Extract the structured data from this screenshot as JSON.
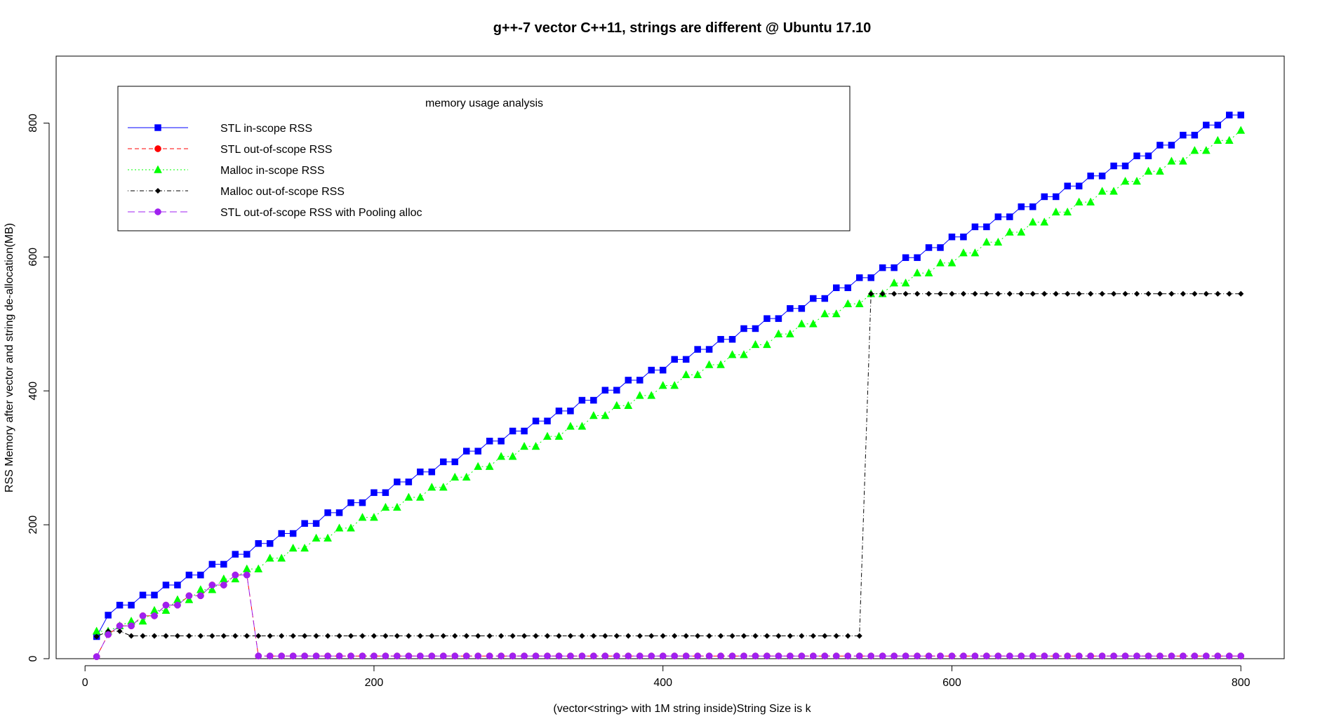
{
  "chart_data": {
    "type": "line",
    "title": "g++-7 vector C++11, strings are different @ Ubuntu 17.10",
    "xlabel": "(vector<string> with 1M string inside)String Size is k",
    "ylabel": "RSS Memory after vector and string de-allocation(MB)",
    "xlim": [
      -20,
      830
    ],
    "ylim": [
      0,
      900
    ],
    "xticks": [
      0,
      200,
      400,
      600,
      800
    ],
    "yticks": [
      0,
      200,
      400,
      600,
      800
    ],
    "grid": false,
    "legend": {
      "title": "memory usage analysis",
      "placement": "top-left",
      "entries": [
        {
          "label": "STL in-scope RSS",
          "color": "#0000ff",
          "marker": "square",
          "dash": "solid"
        },
        {
          "label": "STL out-of-scope RSS",
          "color": "#ff0000",
          "marker": "circle",
          "dash": "dashed"
        },
        {
          "label": "Malloc in-scope RSS",
          "color": "#00ff00",
          "marker": "triangle",
          "dash": "dotted"
        },
        {
          "label": "Malloc out-of-scope RSS",
          "color": "#000000",
          "marker": "diamond",
          "dash": "dotdash"
        },
        {
          "label": "STL out-of-scope RSS with Pooling alloc",
          "color": "#a020f0",
          "marker": "circle",
          "dash": "longdash"
        }
      ]
    },
    "series": [
      {
        "name": "STL in-scope RSS",
        "color": "#0000ff",
        "marker": "square",
        "dash": "",
        "x": [
          8,
          16,
          24,
          32,
          40,
          48,
          56,
          64,
          72,
          80,
          88,
          96,
          104,
          112,
          120,
          128,
          136,
          144,
          152,
          160,
          168,
          176,
          184,
          192,
          200,
          208,
          216,
          224,
          232,
          240,
          248,
          256,
          264,
          272,
          280,
          288,
          296,
          304,
          312,
          320,
          328,
          336,
          344,
          352,
          360,
          368,
          376,
          384,
          392,
          400,
          408,
          416,
          424,
          432,
          440,
          448,
          456,
          464,
          472,
          480,
          488,
          496,
          504,
          512,
          520,
          528,
          536,
          544,
          552,
          560,
          568,
          576,
          584,
          592,
          600,
          608,
          616,
          624,
          632,
          640,
          648,
          656,
          664,
          672,
          680,
          688,
          696,
          704,
          712,
          720,
          728,
          736,
          744,
          752,
          760,
          768,
          776,
          784,
          792,
          800
        ],
        "y": [
          33,
          65,
          80,
          80,
          95,
          95,
          110,
          110,
          125,
          125,
          141,
          141,
          156,
          156,
          172,
          172,
          187,
          187,
          202,
          202,
          218,
          218,
          233,
          233,
          248,
          248,
          264,
          264,
          279,
          279,
          294,
          294,
          310,
          310,
          325,
          325,
          340,
          340,
          355,
          355,
          370,
          370,
          386,
          386,
          401,
          401,
          416,
          416,
          431,
          431,
          447,
          447,
          462,
          462,
          477,
          477,
          493,
          493,
          508,
          508,
          523,
          523,
          538,
          538,
          554,
          554,
          569,
          569,
          584,
          584,
          599,
          599,
          614,
          614,
          630,
          630,
          645,
          645,
          660,
          660,
          675,
          675,
          690,
          690,
          706,
          706,
          721,
          721,
          736,
          736,
          751,
          751,
          767,
          767,
          782,
          782,
          797,
          797,
          812,
          812
        ]
      },
      {
        "name": "STL out-of-scope RSS",
        "color": "#ff0000",
        "marker": "circle",
        "dash": "6,4",
        "x": [
          8,
          16,
          24,
          32,
          40,
          48,
          56,
          64,
          72,
          80,
          88,
          96,
          104,
          112,
          120,
          128,
          136,
          144,
          152,
          160,
          168,
          176,
          184,
          192,
          200,
          208,
          216,
          224,
          232,
          240,
          248,
          256,
          264,
          272,
          280,
          288,
          296,
          304,
          312,
          320,
          328,
          336,
          344,
          352,
          360,
          368,
          376,
          384,
          392,
          400,
          408,
          416,
          424,
          432,
          440,
          448,
          456,
          464,
          472,
          480,
          488,
          496,
          504,
          512,
          520,
          528,
          536,
          544,
          552,
          560,
          568,
          576,
          584,
          592,
          600,
          608,
          616,
          624,
          632,
          640,
          648,
          656,
          664,
          672,
          680,
          688,
          696,
          704,
          712,
          720,
          728,
          736,
          744,
          752,
          760,
          768,
          776,
          784,
          792,
          800
        ],
        "y": [
          3,
          36,
          49,
          49,
          64,
          64,
          80,
          80,
          94,
          94,
          110,
          110,
          125,
          125,
          4,
          4,
          4,
          4,
          4,
          4,
          4,
          4,
          4,
          4,
          4,
          4,
          4,
          4,
          4,
          4,
          4,
          4,
          4,
          4,
          4,
          4,
          4,
          4,
          4,
          4,
          4,
          4,
          4,
          4,
          4,
          4,
          4,
          4,
          4,
          4,
          4,
          4,
          4,
          4,
          4,
          4,
          4,
          4,
          4,
          4,
          4,
          4,
          4,
          4,
          4,
          4,
          4,
          4,
          4,
          4,
          4,
          4,
          4,
          4,
          4,
          4,
          4,
          4,
          4,
          4,
          4,
          4,
          4,
          4,
          4,
          4,
          4,
          4,
          4,
          4,
          4,
          4,
          4,
          4,
          4,
          4,
          4,
          4,
          4,
          4
        ]
      },
      {
        "name": "Malloc in-scope RSS",
        "color": "#00ff00",
        "marker": "triangle",
        "dash": "2,4",
        "x": [
          8,
          16,
          24,
          32,
          40,
          48,
          56,
          64,
          72,
          80,
          88,
          96,
          104,
          112,
          120,
          128,
          136,
          144,
          152,
          160,
          168,
          176,
          184,
          192,
          200,
          208,
          216,
          224,
          232,
          240,
          248,
          256,
          264,
          272,
          280,
          288,
          296,
          304,
          312,
          320,
          328,
          336,
          344,
          352,
          360,
          368,
          376,
          384,
          392,
          400,
          408,
          416,
          424,
          432,
          440,
          448,
          456,
          464,
          472,
          480,
          488,
          496,
          504,
          512,
          520,
          528,
          536,
          544,
          552,
          560,
          568,
          576,
          584,
          592,
          600,
          608,
          616,
          624,
          632,
          640,
          648,
          656,
          664,
          672,
          680,
          688,
          696,
          704,
          712,
          720,
          728,
          736,
          744,
          752,
          760,
          768,
          776,
          784,
          792,
          800
        ],
        "y": [
          41,
          41,
          49,
          56,
          56,
          72,
          72,
          88,
          88,
          103,
          103,
          119,
          119,
          134,
          134,
          150,
          150,
          165,
          165,
          180,
          180,
          195,
          195,
          211,
          211,
          226,
          226,
          241,
          241,
          256,
          256,
          271,
          271,
          287,
          287,
          302,
          302,
          317,
          317,
          332,
          332,
          347,
          347,
          363,
          363,
          378,
          378,
          393,
          393,
          408,
          408,
          424,
          424,
          439,
          439,
          454,
          454,
          469,
          469,
          485,
          485,
          500,
          500,
          515,
          515,
          530,
          530,
          545,
          545,
          561,
          561,
          576,
          576,
          591,
          591,
          606,
          606,
          622,
          622,
          637,
          637,
          652,
          652,
          667,
          667,
          682,
          682,
          698,
          698,
          713,
          713,
          728,
          728,
          743,
          743,
          759,
          759,
          774,
          774,
          789
        ]
      },
      {
        "name": "Malloc out-of-scope RSS",
        "color": "#000000",
        "marker": "diamond",
        "dash": "1,3,6,3",
        "x": [
          8,
          16,
          24,
          32,
          40,
          48,
          56,
          64,
          72,
          80,
          88,
          96,
          104,
          112,
          120,
          128,
          136,
          144,
          152,
          160,
          168,
          176,
          184,
          192,
          200,
          208,
          216,
          224,
          232,
          240,
          248,
          256,
          264,
          272,
          280,
          288,
          296,
          304,
          312,
          320,
          328,
          336,
          344,
          352,
          360,
          368,
          376,
          384,
          392,
          400,
          408,
          416,
          424,
          432,
          440,
          448,
          456,
          464,
          472,
          480,
          488,
          496,
          504,
          512,
          520,
          528,
          536,
          544,
          552,
          560,
          568,
          576,
          584,
          592,
          600,
          608,
          616,
          624,
          632,
          640,
          648,
          656,
          664,
          672,
          680,
          688,
          696,
          704,
          712,
          720,
          728,
          736,
          744,
          752,
          760,
          768,
          776,
          784,
          792,
          800
        ],
        "y": [
          33,
          41,
          41,
          34,
          34,
          34,
          34,
          34,
          34,
          34,
          34,
          34,
          34,
          34,
          34,
          34,
          34,
          34,
          34,
          34,
          34,
          34,
          34,
          34,
          34,
          34,
          34,
          34,
          34,
          34,
          34,
          34,
          34,
          34,
          34,
          34,
          34,
          34,
          34,
          34,
          34,
          34,
          34,
          34,
          34,
          34,
          34,
          34,
          34,
          34,
          34,
          34,
          34,
          34,
          34,
          34,
          34,
          34,
          34,
          34,
          34,
          34,
          34,
          34,
          34,
          34,
          34,
          545,
          545,
          545,
          545,
          545,
          545,
          545,
          545,
          545,
          545,
          545,
          545,
          545,
          545,
          545,
          545,
          545,
          545,
          545,
          545,
          545,
          545,
          545,
          545,
          545,
          545,
          545,
          545,
          545,
          545,
          545,
          545,
          545
        ]
      },
      {
        "name": "STL out-of-scope RSS with Pooling alloc",
        "color": "#a020f0",
        "marker": "circle",
        "dash": "10,5",
        "x": [
          8,
          16,
          24,
          32,
          40,
          48,
          56,
          64,
          72,
          80,
          88,
          96,
          104,
          112,
          120,
          128,
          136,
          144,
          152,
          160,
          168,
          176,
          184,
          192,
          200,
          208,
          216,
          224,
          232,
          240,
          248,
          256,
          264,
          272,
          280,
          288,
          296,
          304,
          312,
          320,
          328,
          336,
          344,
          352,
          360,
          368,
          376,
          384,
          392,
          400,
          408,
          416,
          424,
          432,
          440,
          448,
          456,
          464,
          472,
          480,
          488,
          496,
          504,
          512,
          520,
          528,
          536,
          544,
          552,
          560,
          568,
          576,
          584,
          592,
          600,
          608,
          616,
          624,
          632,
          640,
          648,
          656,
          664,
          672,
          680,
          688,
          696,
          704,
          712,
          720,
          728,
          736,
          744,
          752,
          760,
          768,
          776,
          784,
          792,
          800
        ],
        "y": [
          3,
          36,
          49,
          49,
          64,
          64,
          80,
          80,
          94,
          94,
          110,
          110,
          125,
          125,
          4,
          4,
          4,
          4,
          4,
          4,
          4,
          4,
          4,
          4,
          4,
          4,
          4,
          4,
          4,
          4,
          4,
          4,
          4,
          4,
          4,
          4,
          4,
          4,
          4,
          4,
          4,
          4,
          4,
          4,
          4,
          4,
          4,
          4,
          4,
          4,
          4,
          4,
          4,
          4,
          4,
          4,
          4,
          4,
          4,
          4,
          4,
          4,
          4,
          4,
          4,
          4,
          4,
          4,
          4,
          4,
          4,
          4,
          4,
          4,
          4,
          4,
          4,
          4,
          4,
          4,
          4,
          4,
          4,
          4,
          4,
          4,
          4,
          4,
          4,
          4,
          4,
          4,
          4,
          4,
          4,
          4,
          4,
          4,
          4,
          4
        ]
      }
    ]
  }
}
